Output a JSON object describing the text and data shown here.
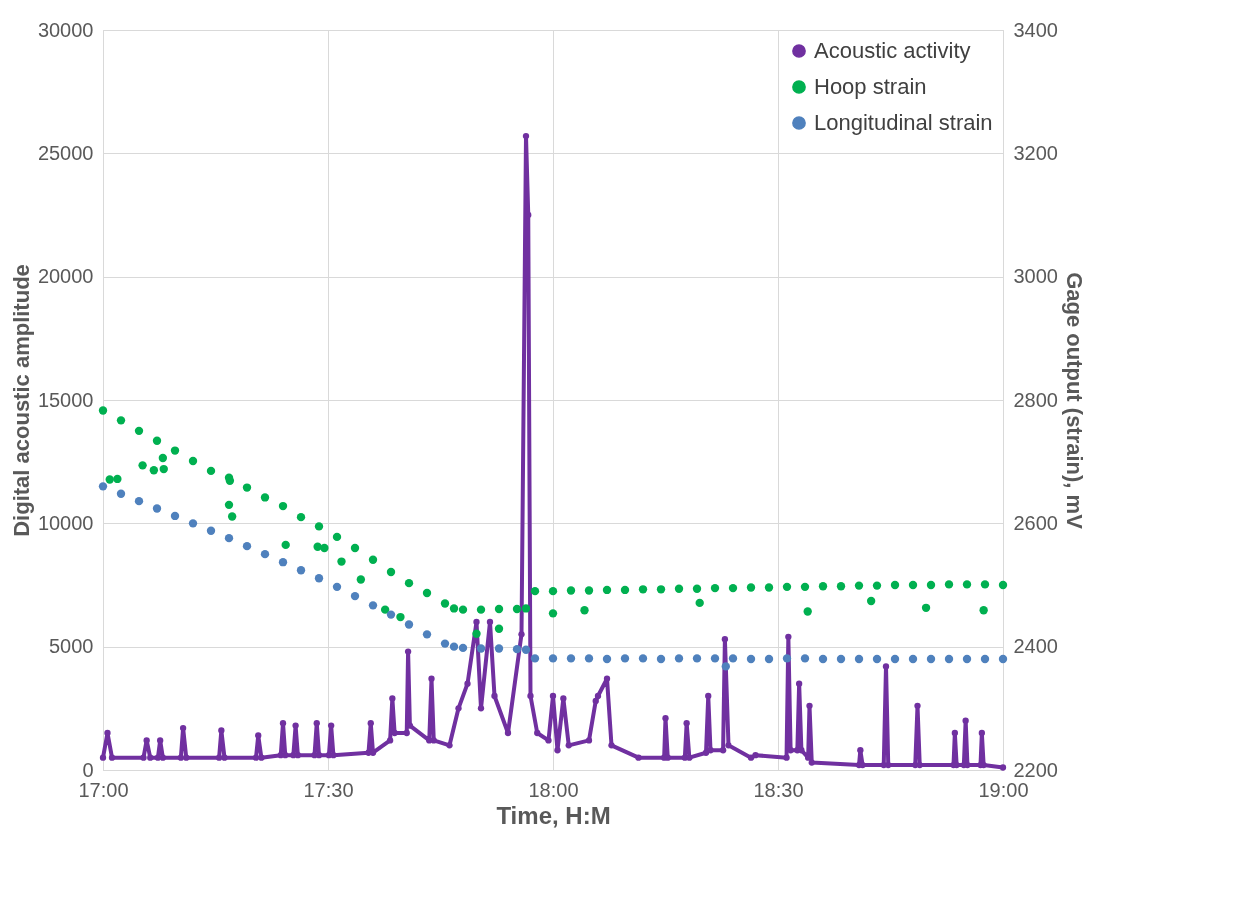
{
  "chart_data": {
    "type": "line",
    "xlabel": "Time, H:M",
    "ylabel": "Digital acoustic amplitude",
    "y2label": "Gage output (strain), mV",
    "xlim": [
      17,
      19
    ],
    "xticks": [
      {
        "value": 17,
        "label": "17:00"
      },
      {
        "value": 17.5,
        "label": "17:30"
      },
      {
        "value": 18,
        "label": "18:00"
      },
      {
        "value": 18.5,
        "label": "18:30"
      },
      {
        "value": 19,
        "label": "19:00"
      }
    ],
    "ylim": [
      0,
      30000
    ],
    "yticks": [
      0,
      5000,
      10000,
      15000,
      20000,
      25000,
      30000
    ],
    "y2lim": [
      2200,
      3400
    ],
    "y2ticks": [
      2200,
      2400,
      2600,
      2800,
      3000,
      3200,
      3400
    ],
    "grid": true,
    "legend": "top right",
    "series": [
      {
        "name": "Acoustic activity",
        "marker": "circle",
        "color": "#7030a0",
        "x": [
          17.0,
          17.01,
          17.02,
          17.09,
          17.097,
          17.105,
          17.122,
          17.127,
          17.133,
          17.173,
          17.178,
          17.185,
          17.258,
          17.263,
          17.27,
          17.34,
          17.345,
          17.352,
          17.395,
          17.4,
          17.405,
          17.423,
          17.428,
          17.433,
          17.47,
          17.475,
          17.48,
          17.502,
          17.507,
          17.512,
          17.59,
          17.595,
          17.6,
          17.638,
          17.643,
          17.648,
          17.675,
          17.678,
          17.682,
          17.725,
          17.73,
          17.735,
          17.77,
          17.79,
          17.81,
          17.83,
          17.84,
          17.86,
          17.87,
          17.9,
          17.93,
          17.94,
          17.945,
          17.95,
          17.965,
          17.99,
          18.0,
          18.01,
          18.023,
          18.035,
          18.08,
          18.095,
          18.1,
          18.12,
          18.13,
          18.19,
          18.247,
          18.25,
          18.255,
          18.293,
          18.297,
          18.303,
          18.34,
          18.345,
          18.35,
          18.378,
          18.382,
          18.39,
          18.44,
          18.45,
          18.519,
          18.523,
          18.528,
          18.543,
          18.547,
          18.552,
          18.567,
          18.57,
          18.575,
          18.68,
          18.683,
          18.688,
          18.735,
          18.74,
          18.745,
          18.805,
          18.81,
          18.815,
          18.89,
          18.893,
          18.897,
          18.913,
          18.917,
          18.921,
          18.95,
          18.953,
          18.957,
          19.0
        ],
        "values": [
          500,
          1500,
          500,
          500,
          1200,
          500,
          500,
          1200,
          500,
          500,
          1700,
          500,
          500,
          1600,
          500,
          500,
          1400,
          500,
          600,
          1900,
          600,
          600,
          1800,
          600,
          600,
          1900,
          600,
          600,
          1800,
          600,
          700,
          1900,
          700,
          1200,
          2900,
          1500,
          1500,
          4800,
          1800,
          1200,
          3700,
          1200,
          1000,
          2500,
          3500,
          6000,
          2500,
          6000,
          3000,
          1500,
          5500,
          25700,
          22500,
          3000,
          1500,
          1200,
          3000,
          800,
          2900,
          1000,
          1200,
          2800,
          3000,
          3700,
          1000,
          500,
          500,
          2100,
          500,
          500,
          1900,
          500,
          700,
          3000,
          800,
          800,
          5300,
          1000,
          500,
          600,
          500,
          5400,
          800,
          800,
          3500,
          800,
          500,
          2600,
          300,
          200,
          800,
          200,
          200,
          4200,
          200,
          200,
          2600,
          200,
          200,
          1500,
          200,
          200,
          2000,
          200,
          200,
          1500,
          200,
          100
        ]
      },
      {
        "name": "Hoop strain",
        "type": "scatter",
        "marker": "circle",
        "axis": "y2",
        "color": "#00b050",
        "x": [
          17.0,
          17.04,
          17.08,
          17.12,
          17.16,
          17.2,
          17.24,
          17.28,
          17.32,
          17.36,
          17.4,
          17.44,
          17.48,
          17.52,
          17.56,
          17.6,
          17.64,
          17.68,
          17.72,
          17.76,
          17.78,
          17.8,
          17.84,
          17.88,
          17.92,
          17.94,
          17.96,
          18.0,
          18.04,
          18.08,
          18.12,
          18.16,
          18.2,
          18.24,
          18.28,
          18.32,
          18.36,
          18.4,
          18.44,
          18.48,
          18.52,
          18.56,
          18.6,
          18.64,
          18.68,
          18.72,
          18.76,
          18.8,
          18.84,
          18.88,
          18.92,
          18.96,
          19.0,
          17.015,
          17.032,
          17.088,
          17.113,
          17.135,
          17.133,
          17.282,
          17.28,
          17.287,
          17.406,
          17.477,
          17.492,
          17.53,
          17.573,
          17.627,
          17.661,
          17.88,
          17.83,
          18.0,
          18.07,
          18.326,
          18.566,
          18.707,
          18.829,
          18.957
        ],
        "values": [
          2783,
          2767,
          2750,
          2734,
          2718,
          2701,
          2685,
          2674,
          2658,
          2642,
          2628,
          2610,
          2595,
          2578,
          2560,
          2541,
          2521,
          2503,
          2487,
          2470,
          2462,
          2460,
          2460,
          2461,
          2461,
          2462,
          2490,
          2490,
          2491,
          2491,
          2492,
          2492,
          2493,
          2493,
          2494,
          2494,
          2495,
          2495,
          2496,
          2496,
          2497,
          2497,
          2498,
          2498,
          2499,
          2499,
          2500,
          2500,
          2500,
          2501,
          2501,
          2501,
          2500,
          2671,
          2672,
          2694,
          2686,
          2688,
          2706,
          2669,
          2630,
          2611,
          2565,
          2562,
          2560,
          2538,
          2509,
          2460,
          2448,
          2429,
          2421,
          2454,
          2459,
          2471,
          2457,
          2474,
          2463,
          2459
        ]
      },
      {
        "name": "Longitudinal strain",
        "type": "scatter",
        "marker": "circle",
        "axis": "y2",
        "color": "#4f81bd",
        "x": [
          17.0,
          17.04,
          17.08,
          17.12,
          17.16,
          17.2,
          17.24,
          17.28,
          17.32,
          17.36,
          17.4,
          17.44,
          17.48,
          17.52,
          17.56,
          17.6,
          17.64,
          17.68,
          17.72,
          17.76,
          17.78,
          17.8,
          17.84,
          17.88,
          17.92,
          17.94,
          17.96,
          18.0,
          18.04,
          18.08,
          18.12,
          18.16,
          18.2,
          18.24,
          18.28,
          18.32,
          18.36,
          18.4,
          18.44,
          18.48,
          18.52,
          18.56,
          18.6,
          18.64,
          18.68,
          18.72,
          18.76,
          18.8,
          18.84,
          18.88,
          18.92,
          18.96,
          19.0,
          18.384
        ],
        "values": [
          2660,
          2648,
          2636,
          2624,
          2612,
          2600,
          2588,
          2576,
          2563,
          2550,
          2537,
          2524,
          2511,
          2497,
          2482,
          2467,
          2452,
          2436,
          2420,
          2405,
          2400,
          2398,
          2397,
          2397,
          2396,
          2395,
          2381,
          2381,
          2381,
          2381,
          2380,
          2381,
          2381,
          2380,
          2381,
          2381,
          2381,
          2381,
          2380,
          2380,
          2381,
          2381,
          2380,
          2380,
          2380,
          2380,
          2380,
          2380,
          2380,
          2380,
          2380,
          2380,
          2380,
          2368
        ]
      }
    ]
  }
}
